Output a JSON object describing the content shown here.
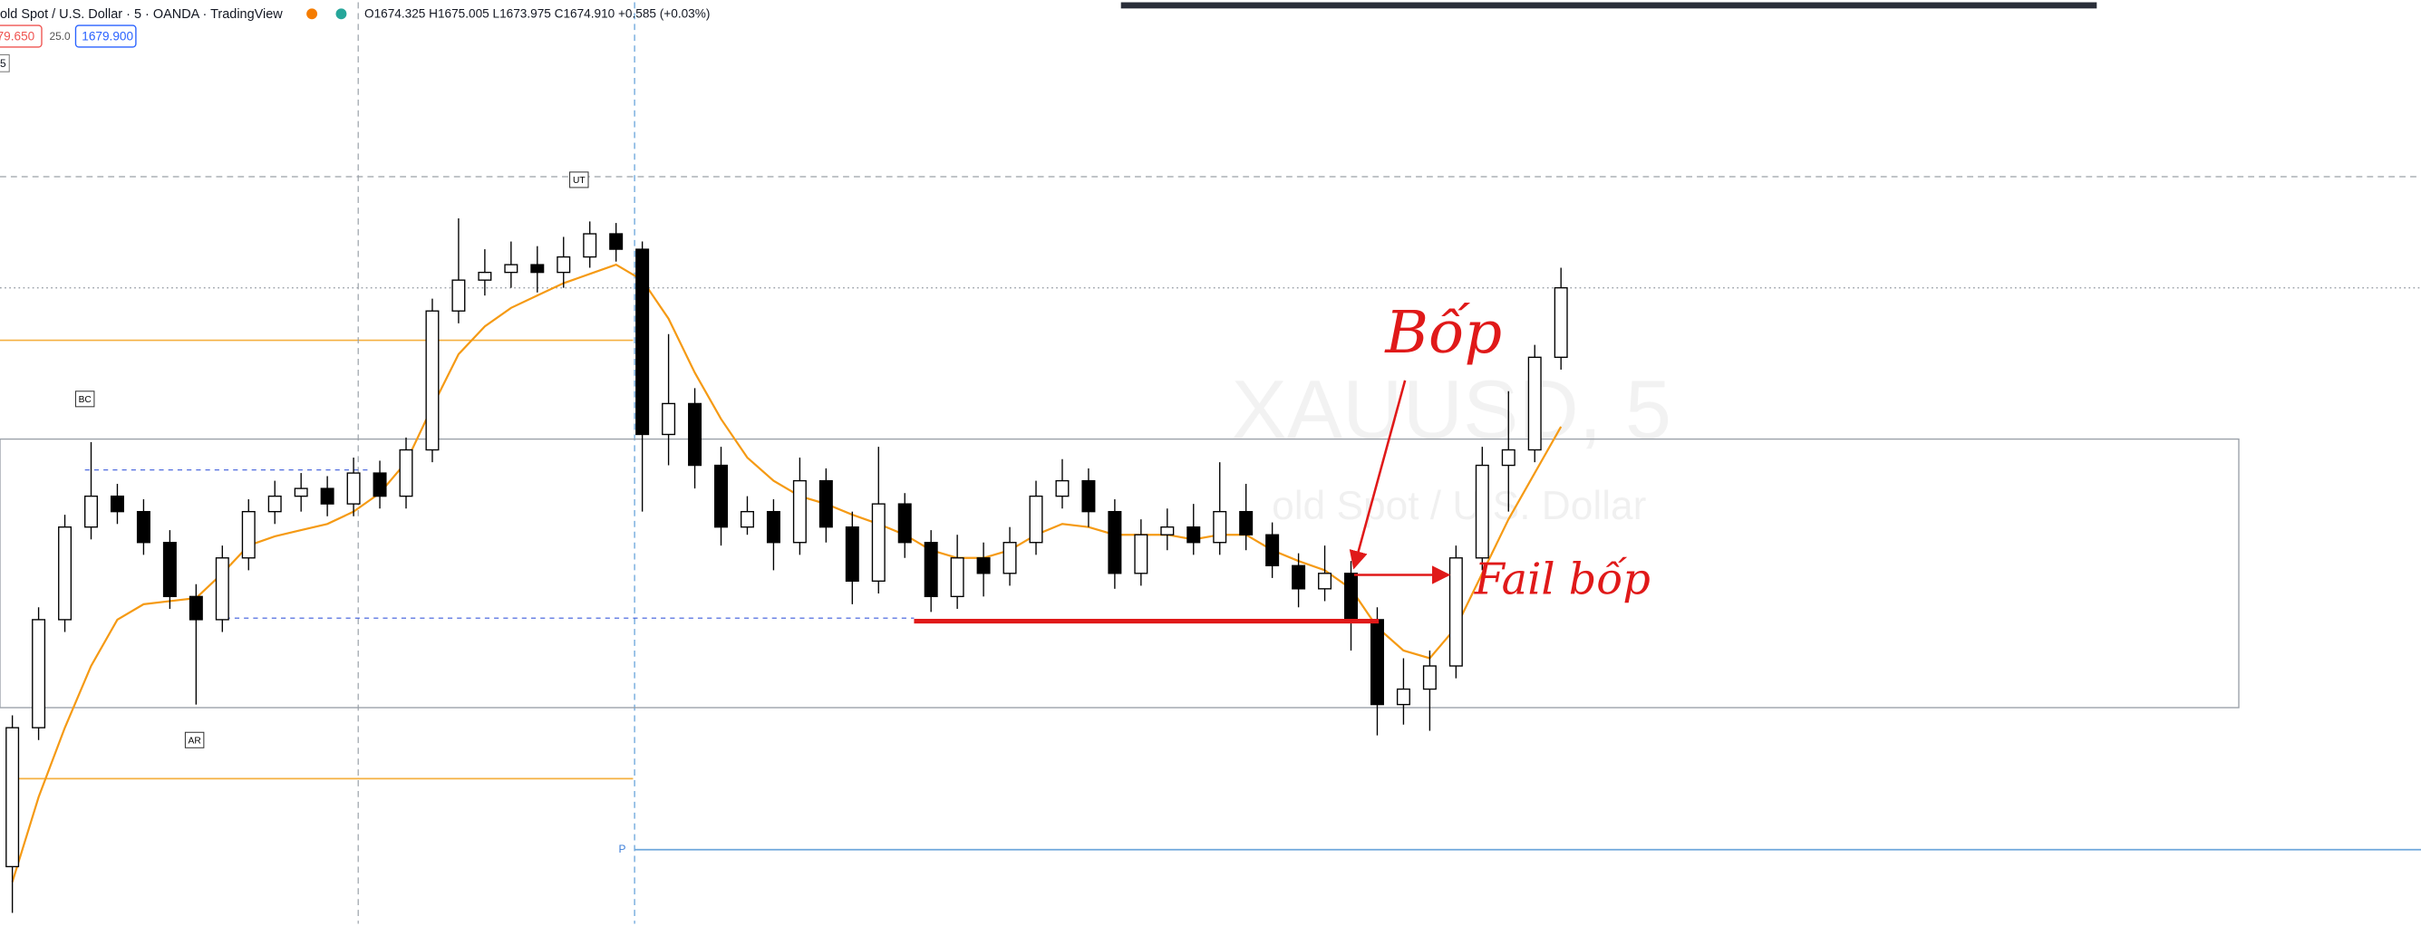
{
  "header": {
    "symbol": "old Spot / U.S. Dollar · 5 · OANDA · TradingView",
    "ohlc": "O1674.325 H1675.005 L1673.975 C1674.910 +0.585 (+0.03%)",
    "sell": "79.650",
    "spread": "25.0",
    "buy": "1679.900",
    "interval": "5"
  },
  "chart_data": {
    "type": "candlestick",
    "watermark": "XAUUSD, 5",
    "watermark_subtitle": "old Spot / U.S. Dollar",
    "ylim": [
      1665.075,
      1680
    ],
    "up_color": "#ffffff",
    "down_color": "#000000",
    "open": [
      1666.0,
      1668.25,
      1670.0,
      1671.5,
      1672.0,
      1671.75,
      1671.25,
      1670.375,
      1670.0,
      1671.0,
      1671.75,
      1672.0,
      1672.125,
      1671.875,
      1672.375,
      1672.0,
      1672.75,
      1675.0,
      1675.5,
      1675.625,
      1675.75,
      1675.625,
      1675.875,
      1676.25,
      1676.0,
      1673.0,
      1673.5,
      1672.5,
      1671.5,
      1671.75,
      1671.25,
      1672.25,
      1671.5,
      1670.625,
      1671.875,
      1671.25,
      1670.375,
      1671.0,
      1670.75,
      1671.25,
      1672.0,
      1672.25,
      1671.75,
      1670.75,
      1671.375,
      1671.5,
      1671.25,
      1671.75,
      1671.375,
      1670.875,
      1670.5,
      1670.75,
      1670.0,
      1668.625,
      1668.875,
      1669.25,
      1671.0,
      1672.5,
      1672.75,
      1674.25
    ],
    "high": [
      1668.45,
      1670.2,
      1671.7,
      1672.875,
      1672.2,
      1671.95,
      1671.45,
      1670.575,
      1671.2,
      1671.95,
      1672.25,
      1672.375,
      1672.325,
      1672.625,
      1672.575,
      1672.95,
      1675.2,
      1676.5,
      1676.0,
      1676.125,
      1676.05,
      1676.2,
      1676.45,
      1676.425,
      1676.125,
      1674.625,
      1673.75,
      1672.8,
      1672.0,
      1671.95,
      1672.625,
      1672.45,
      1671.75,
      1672.8,
      1672.05,
      1671.45,
      1671.375,
      1671.25,
      1671.5,
      1672.25,
      1672.6,
      1672.45,
      1671.95,
      1671.625,
      1671.8,
      1671.875,
      1672.55,
      1672.2,
      1671.575,
      1671.075,
      1671.2,
      1670.95,
      1670.2,
      1669.375,
      1669.5,
      1671.2,
      1672.8,
      1673.7,
      1674.45,
      1675.7
    ],
    "low": [
      1665.25,
      1668.05,
      1669.8,
      1671.3,
      1671.55,
      1671.05,
      1670.175,
      1668.625,
      1669.8,
      1670.8,
      1671.55,
      1671.75,
      1671.675,
      1671.675,
      1671.8,
      1671.8,
      1672.55,
      1674.8,
      1675.25,
      1675.375,
      1675.3,
      1675.375,
      1675.7,
      1675.8,
      1671.75,
      1672.5,
      1672.125,
      1671.2,
      1671.375,
      1670.8,
      1671.05,
      1671.25,
      1670.25,
      1670.425,
      1671.0,
      1670.125,
      1670.175,
      1670.375,
      1670.55,
      1671.05,
      1671.8,
      1671.5,
      1670.5,
      1670.55,
      1671.125,
      1671.05,
      1671.05,
      1671.125,
      1670.675,
      1670.2,
      1670.3,
      1669.5,
      1668.125,
      1668.3,
      1668.2,
      1669.05,
      1670.8,
      1671.75,
      1672.55,
      1674.05
    ],
    "close": [
      1668.25,
      1670.0,
      1671.5,
      1672.0,
      1671.75,
      1671.25,
      1670.375,
      1670.0,
      1671.0,
      1671.75,
      1672.0,
      1672.125,
      1671.875,
      1672.375,
      1672.0,
      1672.75,
      1675.0,
      1675.5,
      1675.625,
      1675.75,
      1675.625,
      1675.875,
      1676.25,
      1676.0,
      1673.0,
      1673.5,
      1672.5,
      1671.5,
      1671.75,
      1671.25,
      1672.25,
      1671.5,
      1670.625,
      1671.875,
      1671.25,
      1670.375,
      1671.0,
      1670.75,
      1671.25,
      1672.0,
      1672.25,
      1671.75,
      1670.75,
      1671.375,
      1671.5,
      1671.25,
      1671.75,
      1671.375,
      1670.875,
      1670.5,
      1670.75,
      1670.0,
      1668.625,
      1668.875,
      1669.25,
      1671.0,
      1672.5,
      1672.75,
      1674.25,
      1675.375
    ],
    "ma": {
      "color": "#f59a14",
      "values": [
        1665.75,
        1667.125,
        1668.25,
        1669.25,
        1670.0,
        1670.25,
        1670.3,
        1670.35,
        1670.75,
        1671.2,
        1671.35,
        1671.45,
        1671.55,
        1671.75,
        1672.05,
        1672.55,
        1673.45,
        1674.3,
        1674.75,
        1675.05,
        1675.25,
        1675.45,
        1675.6,
        1675.75,
        1675.5,
        1674.875,
        1674.0,
        1673.25,
        1672.625,
        1672.25,
        1672.0,
        1671.875,
        1671.7,
        1671.55,
        1671.375,
        1671.125,
        1671.0,
        1671.0,
        1671.125,
        1671.375,
        1671.55,
        1671.5,
        1671.375,
        1671.375,
        1671.375,
        1671.3,
        1671.375,
        1671.375,
        1671.125,
        1670.95,
        1670.8,
        1670.5,
        1669.875,
        1669.5,
        1669.375,
        1669.875,
        1670.75,
        1671.625,
        1672.375,
        1673.125
      ]
    },
    "labels": {
      "ut": "UT",
      "bc": "BC",
      "ar": "AR",
      "pivot": "P"
    },
    "annotations": {
      "bop": "Bốp",
      "fail_bop": "Fail bốp"
    }
  }
}
